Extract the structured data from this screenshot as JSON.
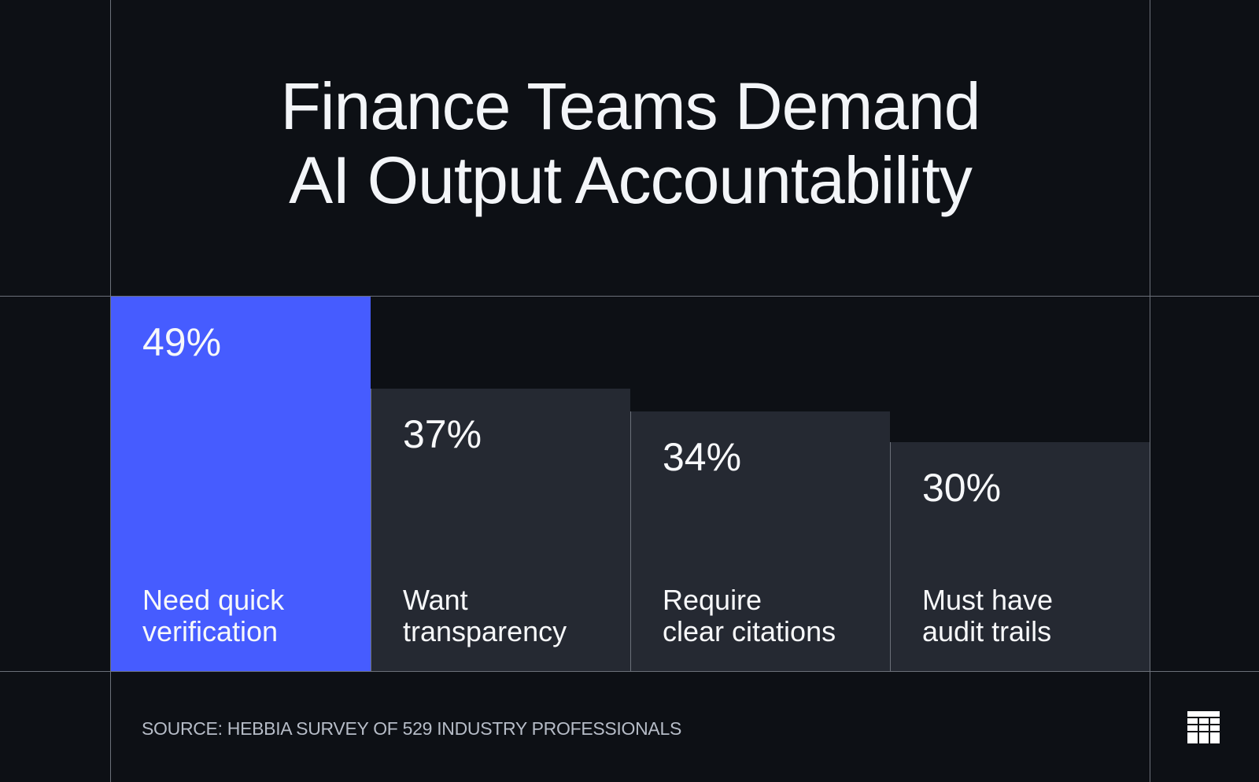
{
  "title_lines": [
    "Finance Teams Demand",
    "AI Output Accountability"
  ],
  "chart_data": {
    "type": "bar",
    "title": "Finance Teams Demand AI Output Accountability",
    "categories": [
      "Need quick\nverification",
      "Want\ntransparency",
      "Require\nclear citations",
      "Must have\naudit trails"
    ],
    "values": [
      49,
      37,
      34,
      30
    ],
    "value_labels": [
      "49%",
      "37%",
      "34%",
      "30%"
    ],
    "unit": "%",
    "highlight_index": 0,
    "xlabel": "",
    "ylabel": "",
    "grid": false,
    "legend": "none"
  },
  "colors": {
    "background": "#0d1015",
    "highlight_bar": "#465cff",
    "bar": "#252932",
    "gridline": "#6b7079",
    "text": "#f3f5f8",
    "source_text": "#b6bcc7"
  },
  "footer": {
    "source": "SOURCE: HEBBIA SURVEY OF 529 INDUSTRY PROFESSIONALS",
    "logo_icon": "grid-logo-icon"
  }
}
